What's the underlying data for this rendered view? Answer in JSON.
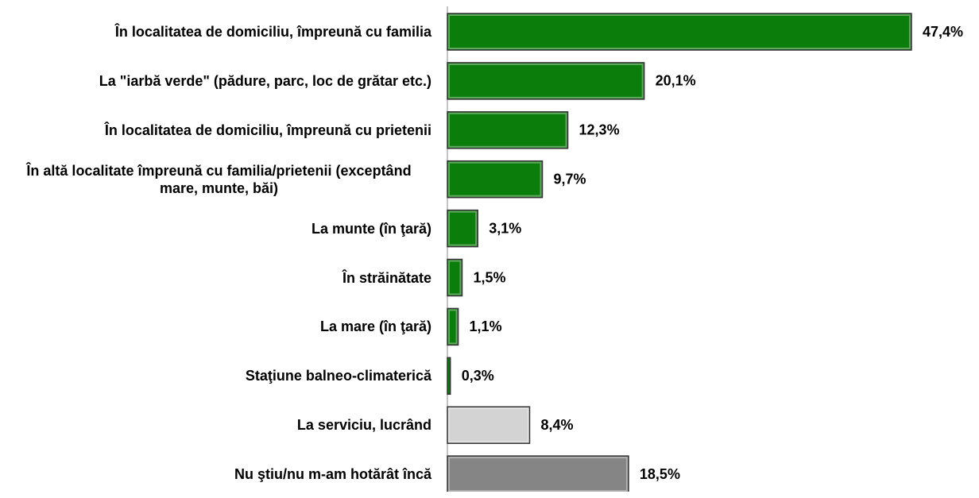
{
  "chart_data": {
    "type": "bar",
    "orientation": "horizontal",
    "categories": [
      "În localitatea de domiciliu, împreună cu familia",
      "La \"iarbă verde\" (pădure, parc, loc de grătar etc.)",
      "În localitatea de domiciliu, împreună cu prietenii",
      "În altă localitate împreună cu familia/prietenii (exceptând mare, munte, băi)",
      "La munte (în ţară)",
      "În străinătate",
      "La mare (în ţară)",
      "Staţiune balneo-climaterică",
      "La serviciu, lucrând",
      "Nu ştiu/nu m-am hotărât încă"
    ],
    "values": [
      47.4,
      20.1,
      12.3,
      9.7,
      3.1,
      1.5,
      1.1,
      0.3,
      8.4,
      18.5
    ],
    "value_labels": [
      "47,4%",
      "20,1%",
      "12,3%",
      "9,7%",
      "3,1%",
      "1,5%",
      "1,1%",
      "0,3%",
      "8,4%",
      "18,5%"
    ],
    "colors": [
      "#0b7d0b",
      "#0b7d0b",
      "#0b7d0b",
      "#0b7d0b",
      "#0b7d0b",
      "#0b7d0b",
      "#0b7d0b",
      "#0b7d0b",
      "#d3d3d3",
      "#858585"
    ]
  }
}
